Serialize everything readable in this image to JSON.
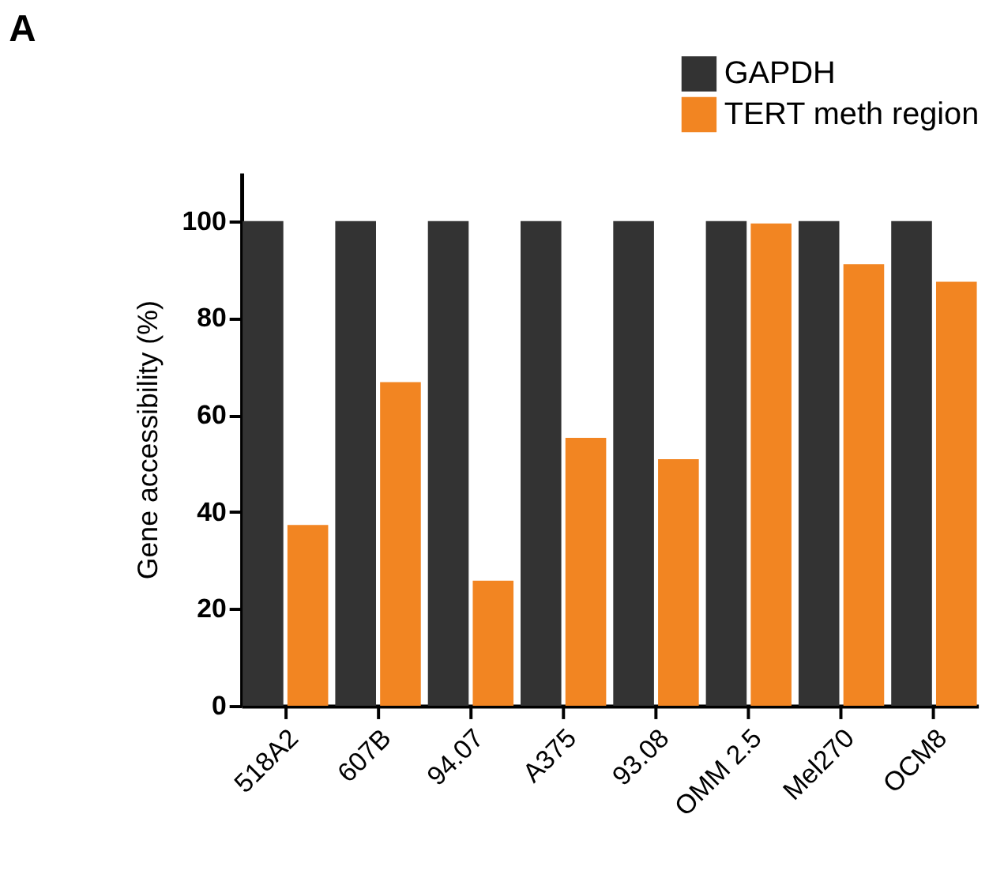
{
  "chart_data": {
    "type": "bar",
    "ylabel": "Gene accessibility  (%)",
    "annotations": [
      "A"
    ],
    "categories": [
      "518A2",
      "607B",
      "94.07",
      "A375",
      "93.08",
      "OMM 2.5",
      "Mel270",
      "OCM8"
    ],
    "series": [
      {
        "name": "GAPDH",
        "color": "#333333",
        "values": [
          100,
          100,
          100,
          100,
          100,
          100,
          100,
          100
        ]
      },
      {
        "name": "TERT meth region",
        "color": "#f28522",
        "values": [
          37.3,
          66.8,
          25.8,
          55.3,
          50.9,
          99.5,
          91.1,
          87.5
        ]
      }
    ],
    "ylim": [
      0,
      110
    ],
    "yticks": [
      0,
      20,
      40,
      60,
      80,
      100
    ],
    "grid": false,
    "legend": "top right"
  }
}
